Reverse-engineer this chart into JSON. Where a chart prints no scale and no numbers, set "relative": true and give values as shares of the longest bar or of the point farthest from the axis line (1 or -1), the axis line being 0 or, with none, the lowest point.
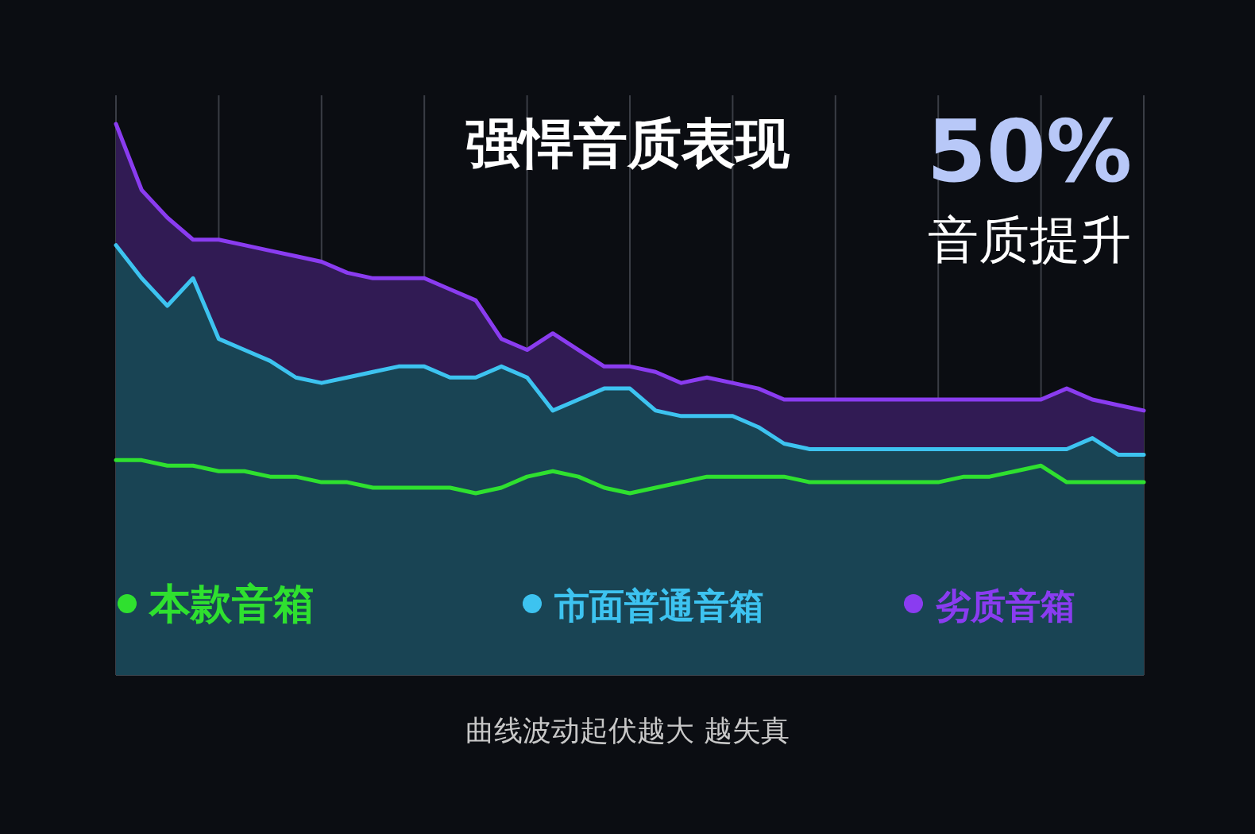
{
  "chart_data": {
    "type": "area",
    "title": "强悍音质表现",
    "relative": true,
    "grid": "x",
    "legend": "bottom",
    "marker": "none",
    "annotations": [
      "50%",
      "音质提升",
      "曲线波动起伏越大 越失真"
    ],
    "categories": [
      null,
      null,
      null,
      null,
      null,
      null,
      null,
      null,
      null,
      null,
      null,
      null,
      null,
      null,
      null,
      null,
      null,
      null,
      null,
      null,
      null,
      null,
      null,
      null,
      null,
      null,
      null,
      null,
      null,
      null,
      null,
      null,
      null,
      null,
      null,
      null,
      null,
      null,
      null,
      null,
      null
    ],
    "series": [
      {
        "name": "劣质音箱",
        "color": "#8a3cf0",
        "values": [
          1.0,
          0.88,
          0.83,
          0.79,
          0.79,
          0.78,
          0.77,
          0.76,
          0.75,
          0.73,
          0.72,
          0.72,
          0.72,
          0.7,
          0.68,
          0.61,
          0.59,
          0.62,
          0.59,
          0.56,
          0.56,
          0.55,
          0.53,
          0.54,
          0.53,
          0.52,
          0.5,
          0.5,
          0.5,
          0.5,
          0.5,
          0.5,
          0.5,
          0.5,
          0.5,
          0.5,
          0.5,
          0.52,
          0.5,
          0.49,
          0.48
        ]
      },
      {
        "name": "市面普通音箱",
        "color": "#3dc3f0",
        "values": [
          0.78,
          0.72,
          0.67,
          0.72,
          0.61,
          0.59,
          0.57,
          0.54,
          0.53,
          0.54,
          0.55,
          0.56,
          0.56,
          0.54,
          0.54,
          0.56,
          0.54,
          0.48,
          0.5,
          0.52,
          0.52,
          0.48,
          0.47,
          0.47,
          0.47,
          0.45,
          0.42,
          0.41,
          0.41,
          0.41,
          0.41,
          0.41,
          0.41,
          0.41,
          0.41,
          0.41,
          0.41,
          0.41,
          0.43,
          0.4,
          0.4
        ]
      },
      {
        "name": "本款音箱",
        "type": "line",
        "color": "#2fe02f",
        "values": [
          0.39,
          0.39,
          0.38,
          0.38,
          0.37,
          0.37,
          0.36,
          0.36,
          0.35,
          0.35,
          0.34,
          0.34,
          0.34,
          0.34,
          0.33,
          0.34,
          0.36,
          0.37,
          0.36,
          0.34,
          0.33,
          0.34,
          0.35,
          0.36,
          0.36,
          0.36,
          0.36,
          0.35,
          0.35,
          0.35,
          0.35,
          0.35,
          0.35,
          0.36,
          0.36,
          0.37,
          0.38,
          0.35,
          0.35,
          0.35,
          0.35
        ]
      }
    ]
  }
}
